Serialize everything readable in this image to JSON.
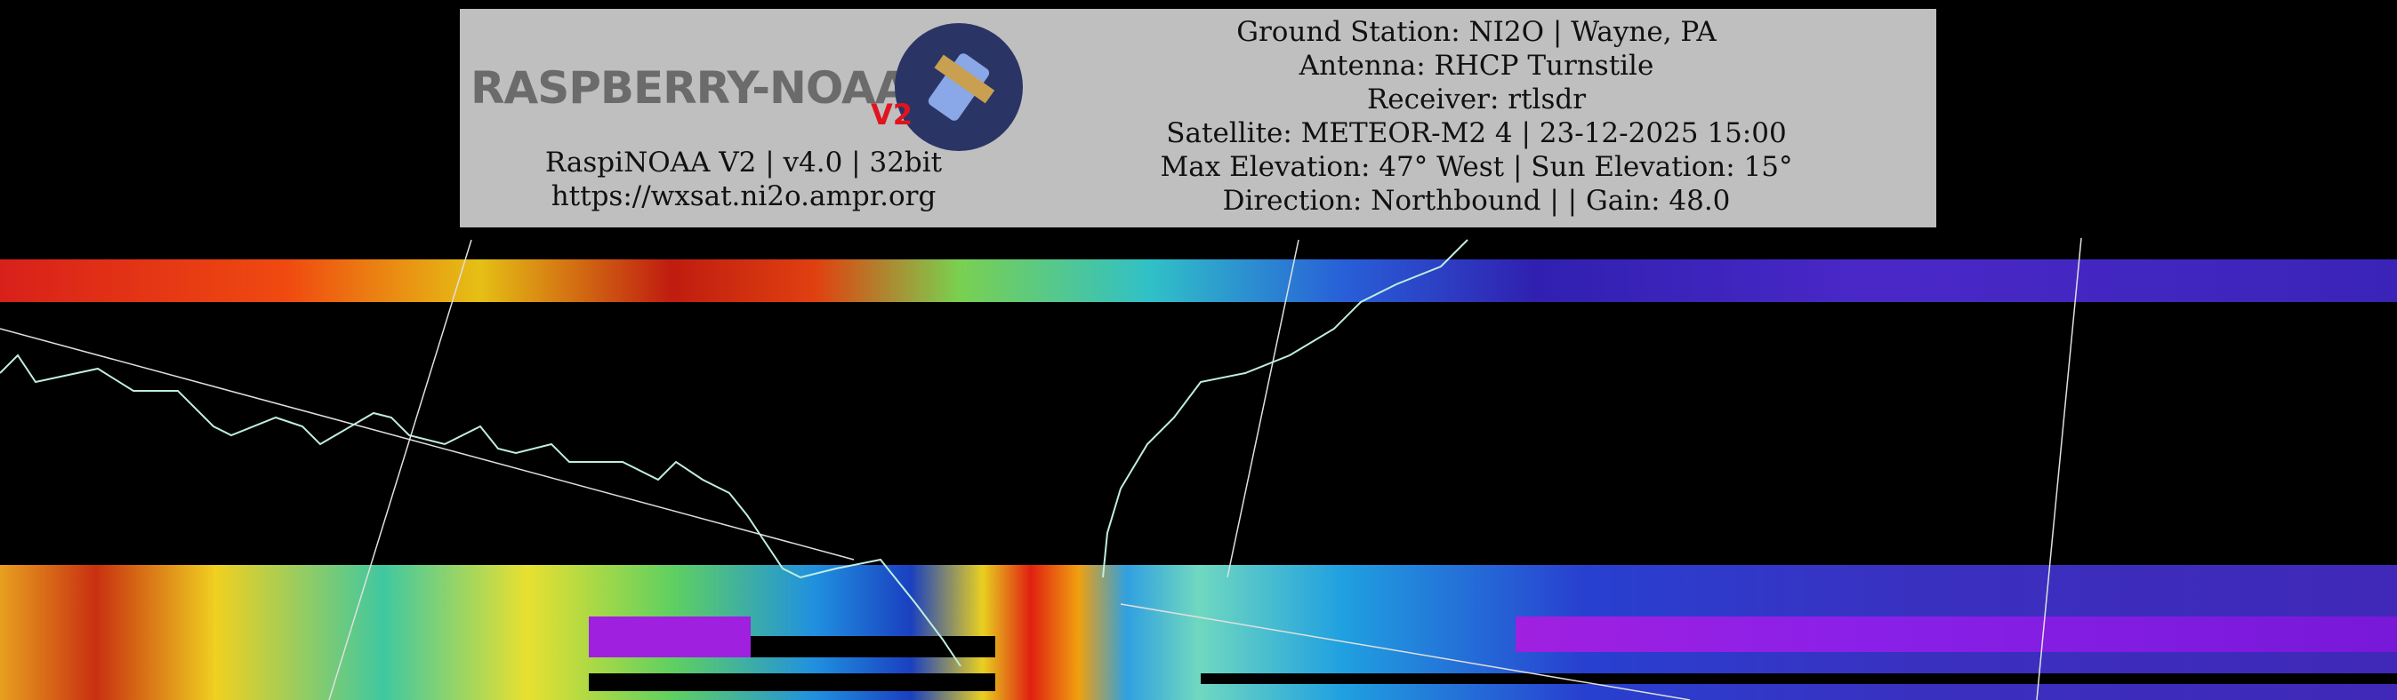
{
  "header": {
    "logo": {
      "text": "RASPBERRY-NOAA",
      "badge": "V2"
    },
    "left_lines": [
      "RaspiNOAA V2 | v4.0 | 32bit",
      "https://wxsat.ni2o.ampr.org"
    ],
    "right_lines": [
      "Ground Station: NI2O | Wayne, PA",
      "Antenna: RHCP Turnstile",
      "Receiver: rtlsdr",
      "Satellite: METEOR-M2 4 | 23-12-2025 15:00",
      "Max Elevation: 47° West | Sun Elevation: 15°",
      "Direction: Northbound | | Gain: 48.0"
    ]
  }
}
